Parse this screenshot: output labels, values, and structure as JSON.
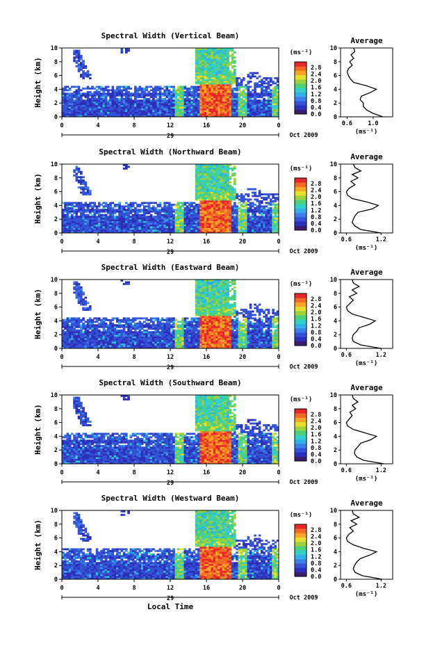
{
  "colors": {
    "background": "#ffffff",
    "axis": "#000000",
    "colorbar_stops": [
      "#3a1e6e",
      "#2d2fb8",
      "#3352d6",
      "#3b7fe8",
      "#32b0e8",
      "#33d0c8",
      "#4cd07a",
      "#9ed23c",
      "#e6e02c",
      "#f7a528",
      "#f06a24",
      "#e8262a"
    ]
  },
  "figure": {
    "xlabel": "Local Time",
    "date_label": "29",
    "month_label": "Oct 2009",
    "colorbar_unit": "(ms⁻¹)",
    "profile_title": "Average",
    "profile_xlabel": "(ms⁻¹)"
  },
  "chart_data": [
    {
      "type": "heatmap",
      "title": "Spectral Width (Vertical Beam)",
      "xlabel": "",
      "ylabel": "Height (km)",
      "x_ticks": [
        "0",
        "4",
        "8",
        "12",
        "16",
        "20",
        "0"
      ],
      "xlim": [
        0,
        24
      ],
      "y_ticks": [
        "0",
        "2",
        "4",
        "6",
        "8",
        "10"
      ],
      "ylim": [
        0,
        10
      ],
      "colorbar": {
        "label": "(ms⁻¹)",
        "ticks": [
          "2.8",
          "2.4",
          "2.0",
          "1.6",
          "1.2",
          "0.8",
          "0.4",
          "0.0"
        ],
        "range": [
          0,
          2.8
        ]
      },
      "profile": {
        "title": "Average",
        "xlabel": "(ms⁻¹)",
        "x_ticks": [
          "0.6",
          "1.0"
        ],
        "xlim": [
          0.5,
          1.3
        ],
        "ylim": [
          0,
          10
        ],
        "height_km": [
          0,
          0.5,
          1,
          1.5,
          2,
          2.5,
          3,
          3.5,
          4,
          4.5,
          5,
          5.5,
          6,
          6.5,
          7,
          7.5,
          8,
          8.5,
          9,
          9.5,
          10
        ],
        "width_ms": [
          1.15,
          1.0,
          0.9,
          0.85,
          0.85,
          0.8,
          0.82,
          0.95,
          1.05,
          0.9,
          0.7,
          0.65,
          0.62,
          0.6,
          0.62,
          0.68,
          0.64,
          0.7,
          0.66,
          0.72,
          0.7
        ]
      }
    },
    {
      "type": "heatmap",
      "title": "Spectral Width (Northward Beam)",
      "xlabel": "",
      "ylabel": "Height (km)",
      "x_ticks": [
        "0",
        "4",
        "8",
        "12",
        "16",
        "20",
        "0"
      ],
      "xlim": [
        0,
        24
      ],
      "y_ticks": [
        "0",
        "2",
        "4",
        "6",
        "8",
        "10"
      ],
      "ylim": [
        0,
        10
      ],
      "colorbar": {
        "label": "(ms⁻¹)",
        "ticks": [
          "2.8",
          "2.4",
          "2.0",
          "1.6",
          "1.2",
          "0.8",
          "0.4",
          "0.0"
        ],
        "range": [
          0,
          2.8
        ]
      },
      "profile": {
        "title": "Average",
        "xlabel": "(ms⁻¹)",
        "x_ticks": [
          "0.6",
          "1.2"
        ],
        "xlim": [
          0.5,
          1.4
        ],
        "ylim": [
          0,
          10
        ],
        "height_km": [
          0,
          0.5,
          1,
          1.5,
          2,
          2.5,
          3,
          3.5,
          4,
          4.5,
          5,
          5.5,
          6,
          6.5,
          7,
          7.5,
          8,
          8.5,
          9,
          9.5,
          10
        ],
        "width_ms": [
          1.2,
          0.85,
          0.75,
          0.7,
          0.72,
          0.75,
          0.8,
          1.05,
          1.15,
          0.95,
          0.7,
          0.62,
          0.6,
          0.65,
          0.75,
          0.68,
          0.8,
          0.7,
          0.85,
          0.75,
          0.72
        ]
      }
    },
    {
      "type": "heatmap",
      "title": "Spectral Width (Eastward Beam)",
      "xlabel": "",
      "ylabel": "Height (km)",
      "x_ticks": [
        "0",
        "4",
        "8",
        "12",
        "16",
        "20",
        "0"
      ],
      "xlim": [
        0,
        24
      ],
      "y_ticks": [
        "0",
        "2",
        "4",
        "6",
        "8",
        "10"
      ],
      "ylim": [
        0,
        10
      ],
      "colorbar": {
        "label": "(ms⁻¹)",
        "ticks": [
          "2.8",
          "2.4",
          "2.0",
          "1.6",
          "1.2",
          "0.8",
          "0.4",
          "0.0"
        ],
        "range": [
          0,
          2.8
        ]
      },
      "profile": {
        "title": "Average",
        "xlabel": "(ms⁻¹)",
        "x_ticks": [
          "0.6",
          "1.2"
        ],
        "xlim": [
          0.5,
          1.4
        ],
        "ylim": [
          0,
          10
        ],
        "height_km": [
          0,
          0.5,
          1,
          1.5,
          2,
          2.5,
          3,
          3.5,
          4,
          4.5,
          5,
          5.5,
          6,
          6.5,
          7,
          7.5,
          8,
          8.5,
          9,
          9.5,
          10
        ],
        "width_ms": [
          1.2,
          0.85,
          0.72,
          0.7,
          0.72,
          0.78,
          0.82,
          1.0,
          1.1,
          0.9,
          0.7,
          0.62,
          0.6,
          0.66,
          0.72,
          0.65,
          0.78,
          0.7,
          0.82,
          0.72,
          0.7
        ]
      }
    },
    {
      "type": "heatmap",
      "title": "Spectral Width (Southward Beam)",
      "xlabel": "",
      "ylabel": "Height (km)",
      "x_ticks": [
        "0",
        "4",
        "8",
        "12",
        "16",
        "20",
        "0"
      ],
      "xlim": [
        0,
        24
      ],
      "y_ticks": [
        "0",
        "2",
        "4",
        "6",
        "8",
        "10"
      ],
      "ylim": [
        0,
        10
      ],
      "colorbar": {
        "label": "(ms⁻¹)",
        "ticks": [
          "2.8",
          "2.4",
          "2.0",
          "1.6",
          "1.2",
          "0.8",
          "0.4",
          "0.0"
        ],
        "range": [
          0,
          2.8
        ]
      },
      "profile": {
        "title": "Average",
        "xlabel": "(ms⁻¹)",
        "x_ticks": [
          "0.6",
          "1.2"
        ],
        "xlim": [
          0.5,
          1.4
        ],
        "ylim": [
          0,
          10
        ],
        "height_km": [
          0,
          0.5,
          1,
          1.5,
          2,
          2.5,
          3,
          3.5,
          4,
          4.5,
          5,
          5.5,
          6,
          6.5,
          7,
          7.5,
          8,
          8.5,
          9,
          9.5,
          10
        ],
        "width_ms": [
          1.25,
          0.9,
          0.78,
          0.74,
          0.75,
          0.8,
          0.85,
          1.02,
          1.12,
          0.92,
          0.72,
          0.62,
          0.6,
          0.65,
          0.7,
          0.66,
          0.76,
          0.7,
          0.8,
          0.72,
          0.7
        ]
      }
    },
    {
      "type": "heatmap",
      "title": "Spectral Width (Westward Beam)",
      "xlabel": "Local Time",
      "ylabel": "Height (km)",
      "x_ticks": [
        "0",
        "4",
        "8",
        "12",
        "16",
        "20",
        "0"
      ],
      "xlim": [
        0,
        24
      ],
      "y_ticks": [
        "0",
        "2",
        "4",
        "6",
        "8",
        "10"
      ],
      "ylim": [
        0,
        10
      ],
      "colorbar": {
        "label": "(ms⁻¹)",
        "ticks": [
          "2.8",
          "2.4",
          "2.0",
          "1.6",
          "1.2",
          "0.8",
          "0.4",
          "0.0"
        ],
        "range": [
          0,
          2.8
        ]
      },
      "profile": {
        "title": "Average",
        "xlabel": "(ms⁻¹)",
        "x_ticks": [
          "0.6",
          "1.2"
        ],
        "xlim": [
          0.5,
          1.4
        ],
        "ylim": [
          0,
          10
        ],
        "height_km": [
          0,
          0.5,
          1,
          1.5,
          2,
          2.5,
          3,
          3.5,
          4,
          4.5,
          5,
          5.5,
          6,
          6.5,
          7,
          7.5,
          8,
          8.5,
          9,
          9.5,
          10
        ],
        "width_ms": [
          1.22,
          0.88,
          0.75,
          0.72,
          0.74,
          0.78,
          0.84,
          1.0,
          1.12,
          0.9,
          0.72,
          0.62,
          0.6,
          0.64,
          0.72,
          0.66,
          0.78,
          0.68,
          0.82,
          0.72,
          0.7
        ]
      }
    }
  ]
}
